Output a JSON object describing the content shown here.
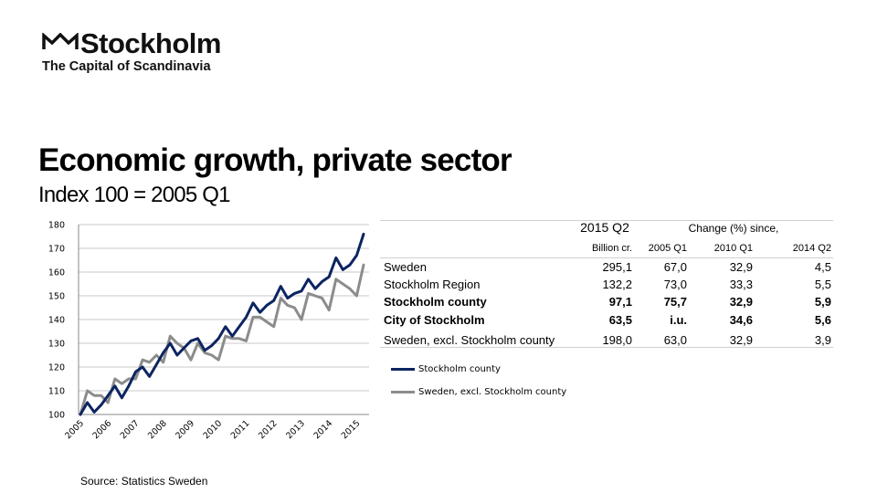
{
  "logo": {
    "name": "Stockholm",
    "tagline": "The Capital of Scandinavia",
    "icon": "crown-icon"
  },
  "title": "Economic growth, private sector",
  "subtitle": "Index 100 = 2005 Q1",
  "source": "Source: Statistics Sweden",
  "colors": {
    "stockholm_county": "#0c2461",
    "sweden_excl": "#8c8c8c",
    "grid": "#c8c8c8"
  },
  "table": {
    "header1": {
      "period": "2015 Q2",
      "change": "Change (%) since,"
    },
    "header2": {
      "unit": "Billion cr.",
      "c1": "2005 Q1",
      "c2": "2010 Q1",
      "c3": "2014 Q2"
    },
    "rows": [
      {
        "label": "Sweden",
        "value": "295,1",
        "c1": "67,0",
        "c2": "32,9",
        "c3": "4,5",
        "bold": false
      },
      {
        "label": "Stockholm Region",
        "value": "132,2",
        "c1": "73,0",
        "c2": "33,3",
        "c3": "5,5",
        "bold": false
      },
      {
        "label": "Stockholm county",
        "value": "97,1",
        "c1": "75,7",
        "c2": "32,9",
        "c3": "5,9",
        "bold": true
      },
      {
        "label": "City of Stockholm",
        "value": "63,5",
        "c1": "i.u.",
        "c2": "34,6",
        "c3": "5,6",
        "bold": true
      },
      {
        "label": "Sweden, excl. Stockholm county",
        "value": "198,0",
        "c1": "63,0",
        "c2": "32,9",
        "c3": "3,9",
        "bold": false
      }
    ]
  },
  "chart_data": {
    "type": "line",
    "ylim": [
      100,
      180
    ],
    "yticks": [
      100,
      110,
      120,
      130,
      140,
      150,
      160,
      170,
      180
    ],
    "xticks": [
      "2005",
      "2006",
      "2007",
      "2008",
      "2009",
      "2010",
      "2011",
      "2012",
      "2013",
      "2014",
      "2015"
    ],
    "x_start": "2005 Q1",
    "x_end": "2015 Q2",
    "grid": true,
    "legend_position": "right",
    "series": [
      {
        "name": "Stockholm county",
        "values": [
          100,
          105,
          101,
          104,
          108,
          112,
          107,
          112,
          118,
          120,
          116,
          121,
          126,
          130,
          125,
          128,
          131,
          132,
          127,
          129,
          132,
          137,
          133,
          137,
          141,
          147,
          143,
          146,
          148,
          154,
          149,
          151,
          152,
          157,
          153,
          156,
          158,
          166,
          161,
          163,
          167,
          176
        ]
      },
      {
        "name": "Sweden, excl. Stockholm county",
        "values": [
          100,
          110,
          108,
          108,
          105,
          115,
          113,
          115,
          115,
          123,
          122,
          125,
          122,
          133,
          130,
          128,
          123,
          130,
          126,
          125,
          123,
          133,
          132,
          132,
          131,
          141,
          141,
          139,
          137,
          149,
          146,
          145,
          140,
          151,
          150,
          149,
          144,
          157,
          155,
          153,
          150,
          163
        ]
      }
    ]
  }
}
